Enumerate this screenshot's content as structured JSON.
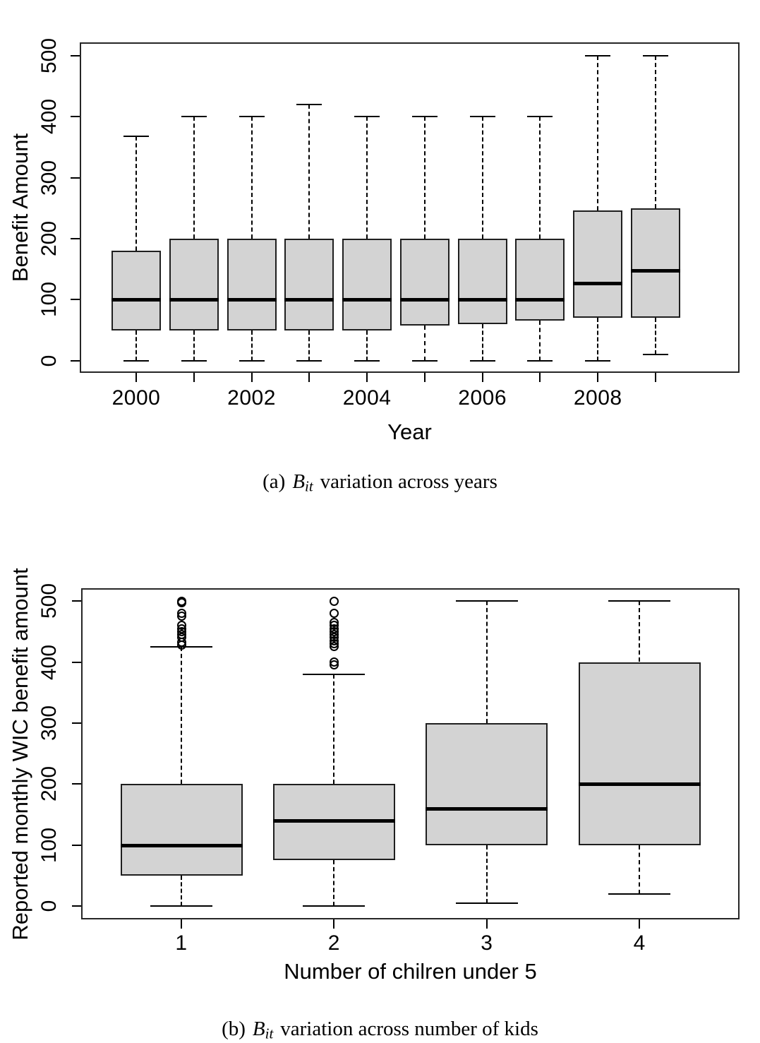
{
  "colors": {
    "box_fill": "#d3d3d3",
    "line": "#000000",
    "background": "#ffffff"
  },
  "chart_data": [
    {
      "type": "boxplot",
      "id": "a",
      "xlabel": "Year",
      "ylabel": "Benefit Amount",
      "ylim": [
        -20,
        522
      ],
      "yticks": [
        0,
        100,
        200,
        300,
        400,
        500
      ],
      "grid": false,
      "legend": "none",
      "categories": [
        "2000",
        "2001",
        "2002",
        "2003",
        "2004",
        "2005",
        "2006",
        "2007",
        "2008",
        "2009"
      ],
      "xtick_labels": [
        "2000",
        "2002",
        "2004",
        "2006",
        "2008"
      ],
      "boxes": [
        {
          "category": "2000",
          "min": 0,
          "q1": 50,
          "median": 100,
          "q3": 180,
          "max": 368,
          "outliers": []
        },
        {
          "category": "2001",
          "min": 0,
          "q1": 50,
          "median": 100,
          "q3": 200,
          "max": 400,
          "outliers": []
        },
        {
          "category": "2002",
          "min": 0,
          "q1": 50,
          "median": 100,
          "q3": 200,
          "max": 400,
          "outliers": []
        },
        {
          "category": "2003",
          "min": 0,
          "q1": 50,
          "median": 100,
          "q3": 200,
          "max": 420,
          "outliers": []
        },
        {
          "category": "2004",
          "min": 0,
          "q1": 50,
          "median": 100,
          "q3": 200,
          "max": 400,
          "outliers": []
        },
        {
          "category": "2005",
          "min": 0,
          "q1": 58,
          "median": 100,
          "q3": 200,
          "max": 400,
          "outliers": []
        },
        {
          "category": "2006",
          "min": 0,
          "q1": 60,
          "median": 100,
          "q3": 200,
          "max": 400,
          "outliers": []
        },
        {
          "category": "2007",
          "min": 0,
          "q1": 66,
          "median": 100,
          "q3": 200,
          "max": 400,
          "outliers": []
        },
        {
          "category": "2008",
          "min": 0,
          "q1": 70,
          "median": 127,
          "q3": 246,
          "max": 500,
          "outliers": []
        },
        {
          "category": "2009",
          "min": 10,
          "q1": 70,
          "median": 148,
          "q3": 250,
          "max": 500,
          "outliers": []
        }
      ],
      "caption": {
        "prefix": "(a)",
        "math_var": "B",
        "math_sub": "it",
        "text": "variation across years"
      }
    },
    {
      "type": "boxplot",
      "id": "b",
      "xlabel": "Number of chilren under 5",
      "ylabel": "Reported monthly WIC benefit amount",
      "ylim": [
        -22,
        521
      ],
      "yticks": [
        0,
        100,
        200,
        300,
        400,
        500
      ],
      "grid": false,
      "legend": "none",
      "categories": [
        "1",
        "2",
        "3",
        "4"
      ],
      "xtick_labels": [
        "1",
        "2",
        "3",
        "4"
      ],
      "boxes": [
        {
          "category": "1",
          "min": 0,
          "q1": 50,
          "median": 100,
          "q3": 200,
          "max": 425,
          "outliers": [
            428,
            432,
            440,
            445,
            450,
            455,
            460,
            475,
            480,
            497,
            500
          ]
        },
        {
          "category": "2",
          "min": 0,
          "q1": 75,
          "median": 140,
          "q3": 200,
          "max": 380,
          "outliers": [
            395,
            400,
            425,
            430,
            435,
            440,
            445,
            450,
            455,
            460,
            465,
            480,
            500
          ]
        },
        {
          "category": "3",
          "min": 5,
          "q1": 100,
          "median": 160,
          "q3": 300,
          "max": 500,
          "outliers": []
        },
        {
          "category": "4",
          "min": 20,
          "q1": 100,
          "median": 200,
          "q3": 400,
          "max": 500,
          "outliers": []
        }
      ],
      "caption": {
        "prefix": "(b)",
        "math_var": "B",
        "math_sub": "it",
        "text": "variation across number of kids"
      }
    }
  ]
}
